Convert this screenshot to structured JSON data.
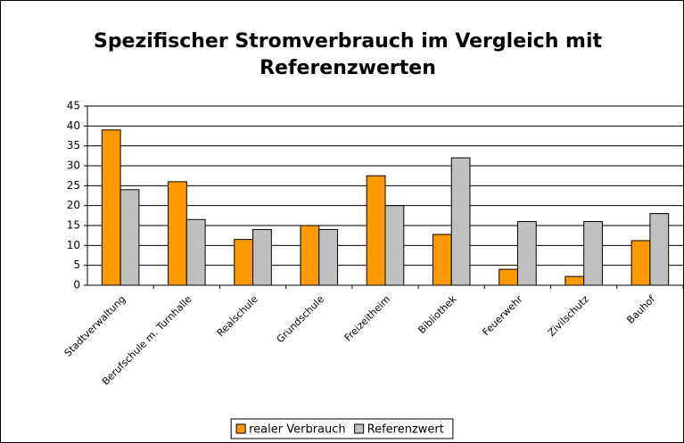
{
  "chart_data": {
    "type": "bar",
    "title": "Spezifischer Stromverbrauch im Vergleich mit Referenzwerten",
    "categories": [
      "Stadtverwaltung",
      "Berufschule m. Turnhalle",
      "Realschule",
      "Grundschule",
      "Freizeitheim",
      "Bibliothek",
      "Feuerwehr",
      "Zivilschutz",
      "Bauhof"
    ],
    "series": [
      {
        "name": "realer Verbrauch",
        "color": "#ff9900",
        "values": [
          39,
          26,
          11.5,
          15,
          27.5,
          12.75,
          4,
          2.2,
          11.2
        ]
      },
      {
        "name": "Referenzwert",
        "color": "#c0c0c0",
        "values": [
          24,
          16.5,
          14,
          14,
          20,
          32,
          16,
          16,
          18
        ]
      }
    ],
    "ylim": [
      0,
      45
    ],
    "yticks": [
      0,
      5,
      10,
      15,
      20,
      25,
      30,
      35,
      40,
      45
    ],
    "grid": true,
    "legend": "bottom"
  }
}
